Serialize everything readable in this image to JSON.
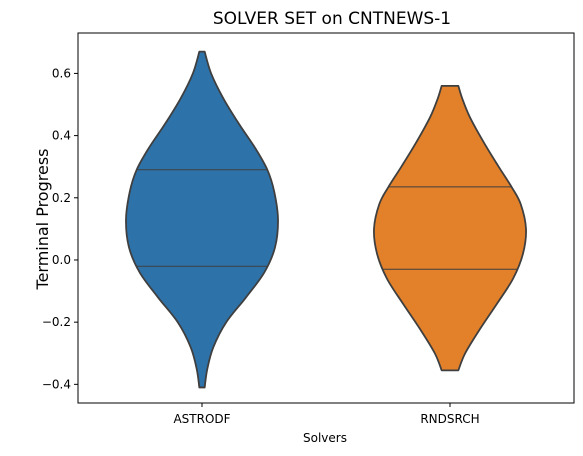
{
  "chart_data": {
    "type": "violin",
    "title": "SOLVER SET on CNTNEWS-1",
    "xlabel": "Solvers",
    "ylabel": "Terminal Progress",
    "ylim": [
      -0.46,
      0.73
    ],
    "yticks": [
      -0.4,
      -0.2,
      0.0,
      0.2,
      0.4,
      0.6
    ],
    "ytick_labels": [
      "−0.4",
      "−0.2",
      "0.0",
      "0.2",
      "0.4",
      "0.6"
    ],
    "grid": false,
    "categories": [
      "ASTRODF",
      "RNDSRCH"
    ],
    "series": [
      {
        "category": "ASTRODF",
        "color": "#2e72aa",
        "min": -0.41,
        "max": 0.67,
        "q1": -0.02,
        "q3": 0.29,
        "density_profile": [
          [
            -0.41,
            0.035
          ],
          [
            -0.35,
            0.07
          ],
          [
            -0.28,
            0.15
          ],
          [
            -0.2,
            0.32
          ],
          [
            -0.12,
            0.58
          ],
          [
            -0.04,
            0.82
          ],
          [
            0.04,
            0.96
          ],
          [
            0.13,
            1.0
          ],
          [
            0.22,
            0.95
          ],
          [
            0.29,
            0.86
          ],
          [
            0.36,
            0.7
          ],
          [
            0.44,
            0.48
          ],
          [
            0.52,
            0.28
          ],
          [
            0.6,
            0.12
          ],
          [
            0.67,
            0.035
          ]
        ]
      },
      {
        "category": "RNDSRCH",
        "color": "#e3812b",
        "min": -0.355,
        "max": 0.56,
        "q1": -0.03,
        "q3": 0.235,
        "density_profile": [
          [
            -0.355,
            0.11
          ],
          [
            -0.3,
            0.2
          ],
          [
            -0.22,
            0.4
          ],
          [
            -0.14,
            0.62
          ],
          [
            -0.06,
            0.83
          ],
          [
            0.02,
            0.96
          ],
          [
            0.1,
            1.0
          ],
          [
            0.18,
            0.93
          ],
          [
            0.235,
            0.81
          ],
          [
            0.3,
            0.64
          ],
          [
            0.38,
            0.44
          ],
          [
            0.46,
            0.26
          ],
          [
            0.52,
            0.16
          ],
          [
            0.56,
            0.11
          ]
        ]
      }
    ]
  }
}
